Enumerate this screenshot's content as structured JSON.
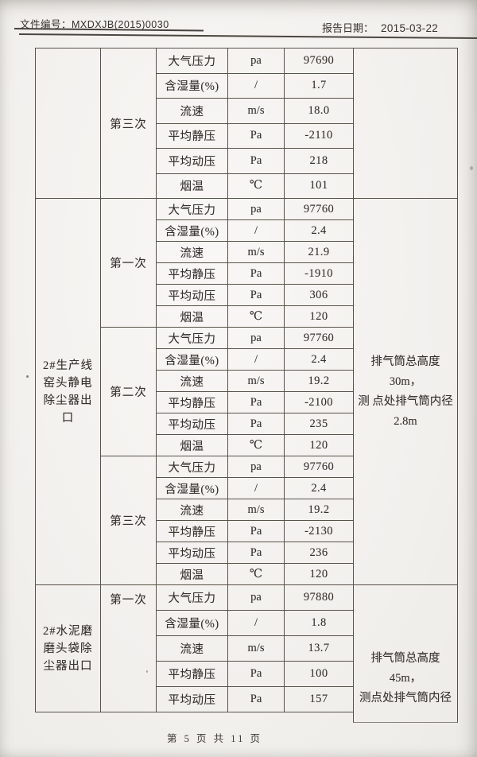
{
  "header": {
    "doc_no_label": "文件编号：",
    "doc_no_value": "MXDXJB(2015)0030",
    "report_date_label": "报告日期：",
    "report_date_value": "2015-03-22"
  },
  "colors": {
    "paper": "#f3f1ee",
    "ink": "#35312d",
    "table_line": "#585349"
  },
  "table": {
    "blocks": [
      {
        "location_lines": [],
        "note_lines": [],
        "rounds": [
          {
            "label": "第三次",
            "rows": [
              {
                "param": "大气压力",
                "unit": "pa",
                "value": "97690"
              },
              {
                "param": "含湿量(%)",
                "unit": "/",
                "value": "1.7"
              },
              {
                "param": "流速",
                "unit": "m/s",
                "value": "18.0"
              },
              {
                "param": "平均静压",
                "unit": "Pa",
                "value": "-2110"
              },
              {
                "param": "平均动压",
                "unit": "Pa",
                "value": "218"
              },
              {
                "param": "烟温",
                "unit": "℃",
                "value": "101"
              }
            ]
          }
        ]
      },
      {
        "location_lines": [
          "2#生产线",
          "窑头静电",
          "除尘器出",
          "口"
        ],
        "note_lines": [
          "排气筒总高度 30m，",
          "测 点处排气筒内径",
          "2.8m"
        ],
        "rounds": [
          {
            "label": "第一次",
            "rows": [
              {
                "param": "大气压力",
                "unit": "pa",
                "value": "97760"
              },
              {
                "param": "含湿量(%)",
                "unit": "/",
                "value": "2.4"
              },
              {
                "param": "流速",
                "unit": "m/s",
                "value": "21.9"
              },
              {
                "param": "平均静压",
                "unit": "Pa",
                "value": "-1910"
              },
              {
                "param": "平均动压",
                "unit": "Pa",
                "value": "306"
              },
              {
                "param": "烟温",
                "unit": "℃",
                "value": "120"
              }
            ]
          },
          {
            "label": "第二次",
            "rows": [
              {
                "param": "大气压力",
                "unit": "pa",
                "value": "97760"
              },
              {
                "param": "含湿量(%)",
                "unit": "/",
                "value": "2.4"
              },
              {
                "param": "流速",
                "unit": "m/s",
                "value": "19.2"
              },
              {
                "param": "平均静压",
                "unit": "Pa",
                "value": "-2100"
              },
              {
                "param": "平均动压",
                "unit": "Pa",
                "value": "235"
              },
              {
                "param": "烟温",
                "unit": "℃",
                "value": "120"
              }
            ]
          },
          {
            "label": "第三次",
            "rows": [
              {
                "param": "大气压力",
                "unit": "pa",
                "value": "97760"
              },
              {
                "param": "含湿量(%)",
                "unit": "/",
                "value": "2.4"
              },
              {
                "param": "流速",
                "unit": "m/s",
                "value": "19.2"
              },
              {
                "param": "平均静压",
                "unit": "Pa",
                "value": "-2130"
              },
              {
                "param": "平均动压",
                "unit": "Pa",
                "value": "236"
              },
              {
                "param": "烟温",
                "unit": "℃",
                "value": "120"
              }
            ]
          }
        ]
      },
      {
        "location_lines": [
          "2#水泥磨",
          "磨头袋除",
          "尘器出口"
        ],
        "note_lines": [
          "排气筒总高度 45m，",
          "测点处排气筒内径"
        ],
        "rounds": [
          {
            "label": "第一次",
            "rows": [
              {
                "param": "大气压力",
                "unit": "pa",
                "value": "97880"
              },
              {
                "param": "含湿量(%)",
                "unit": "/",
                "value": "1.8"
              },
              {
                "param": "流速",
                "unit": "m/s",
                "value": "13.7"
              },
              {
                "param": "平均静压",
                "unit": "Pa",
                "value": "100"
              },
              {
                "param": "平均动压",
                "unit": "Pa",
                "value": "157"
              }
            ]
          }
        ]
      }
    ]
  },
  "footer": {
    "page_text": "第 5 页 共 11 页"
  }
}
